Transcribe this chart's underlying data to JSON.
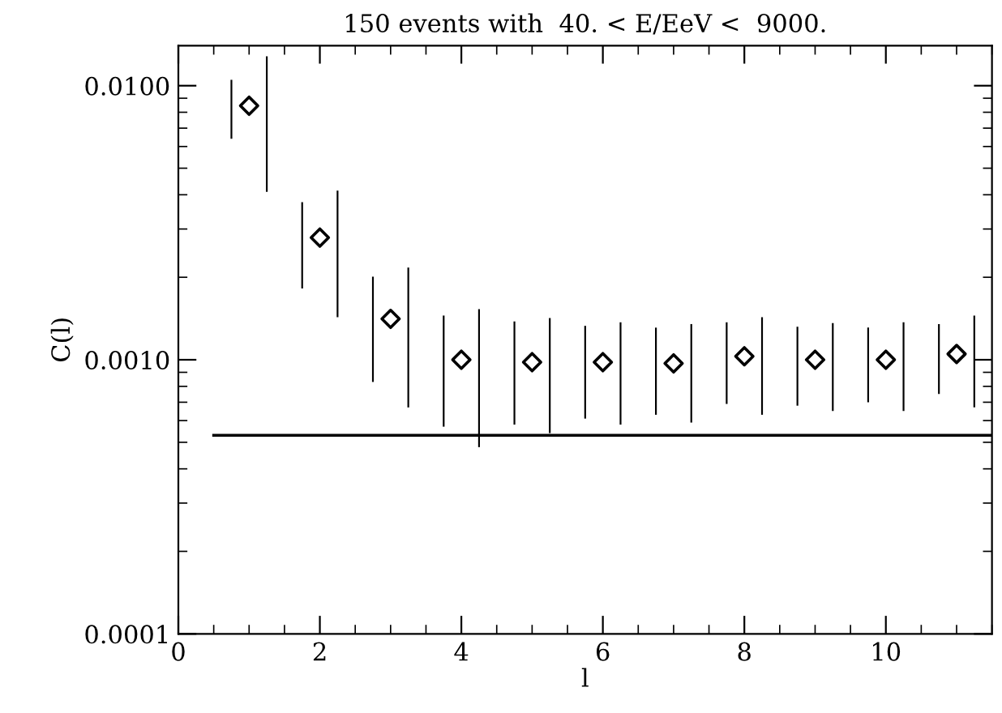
{
  "chart_data": {
    "type": "scatter",
    "title": "150 events with  40. < E/EeV <  9000.",
    "xlabel": "l",
    "ylabel": "C(l)",
    "log": "y",
    "xlim": [
      0,
      11.5
    ],
    "xticks": [
      0,
      2,
      4,
      6,
      8,
      10
    ],
    "ylim": [
      0.0001,
      0.014
    ],
    "yticks": [
      0.0001,
      {
        "value": 0.001,
        "label": "0.0010"
      },
      {
        "value": 0.01,
        "label": "0.0100"
      }
    ],
    "grid": false,
    "legend": false,
    "series": [
      {
        "type": "bar",
        "color": "#000000",
        "x": [
          0.75,
          1.75,
          2.75,
          3.75,
          4.75,
          5.75,
          6.75,
          7.75,
          8.75,
          9.75,
          10.75
        ],
        "base": [
          0.0064,
          0.00182,
          0.00083,
          0.00057,
          0.00058,
          0.00061,
          0.00063,
          0.00069,
          0.00068,
          0.0007,
          0.00075
        ],
        "values": [
          0.0041,
          0.00194,
          0.00118,
          0.00088,
          0.0008,
          0.00072,
          0.00068,
          0.00068,
          0.00064,
          0.00061,
          0.0006
        ]
      },
      {
        "type": "bar",
        "color": "#000000",
        "x": [
          1.25,
          2.25,
          3.25,
          4.25,
          5.25,
          6.25,
          7.25,
          8.25,
          9.25,
          10.25,
          11.25
        ],
        "base": [
          0.0041,
          0.00143,
          0.00067,
          0.00048,
          0.00054,
          0.00058,
          0.00059,
          0.00063,
          0.00065,
          0.00065,
          0.00067
        ],
        "values": [
          0.0087,
          0.00271,
          0.0015,
          0.00105,
          0.00088,
          0.00079,
          0.00076,
          0.0008,
          0.00071,
          0.00072,
          0.00078
        ]
      },
      {
        "color": "#000000",
        "marker": "diamond",
        "x": [
          1,
          2,
          3,
          4,
          5,
          6,
          7,
          8,
          9,
          10,
          11
        ],
        "values": [
          0.00845,
          0.00279,
          0.00141,
          0.001,
          0.00098,
          0.00098,
          0.00097,
          0.00103,
          0.001,
          0.001,
          0.00105
        ]
      },
      {
        "type": "line",
        "color": "#000000",
        "marker": "none",
        "line_style": "solid",
        "x": [
          0.5,
          11.5
        ],
        "values": [
          0.00053,
          0.00053
        ]
      }
    ]
  }
}
